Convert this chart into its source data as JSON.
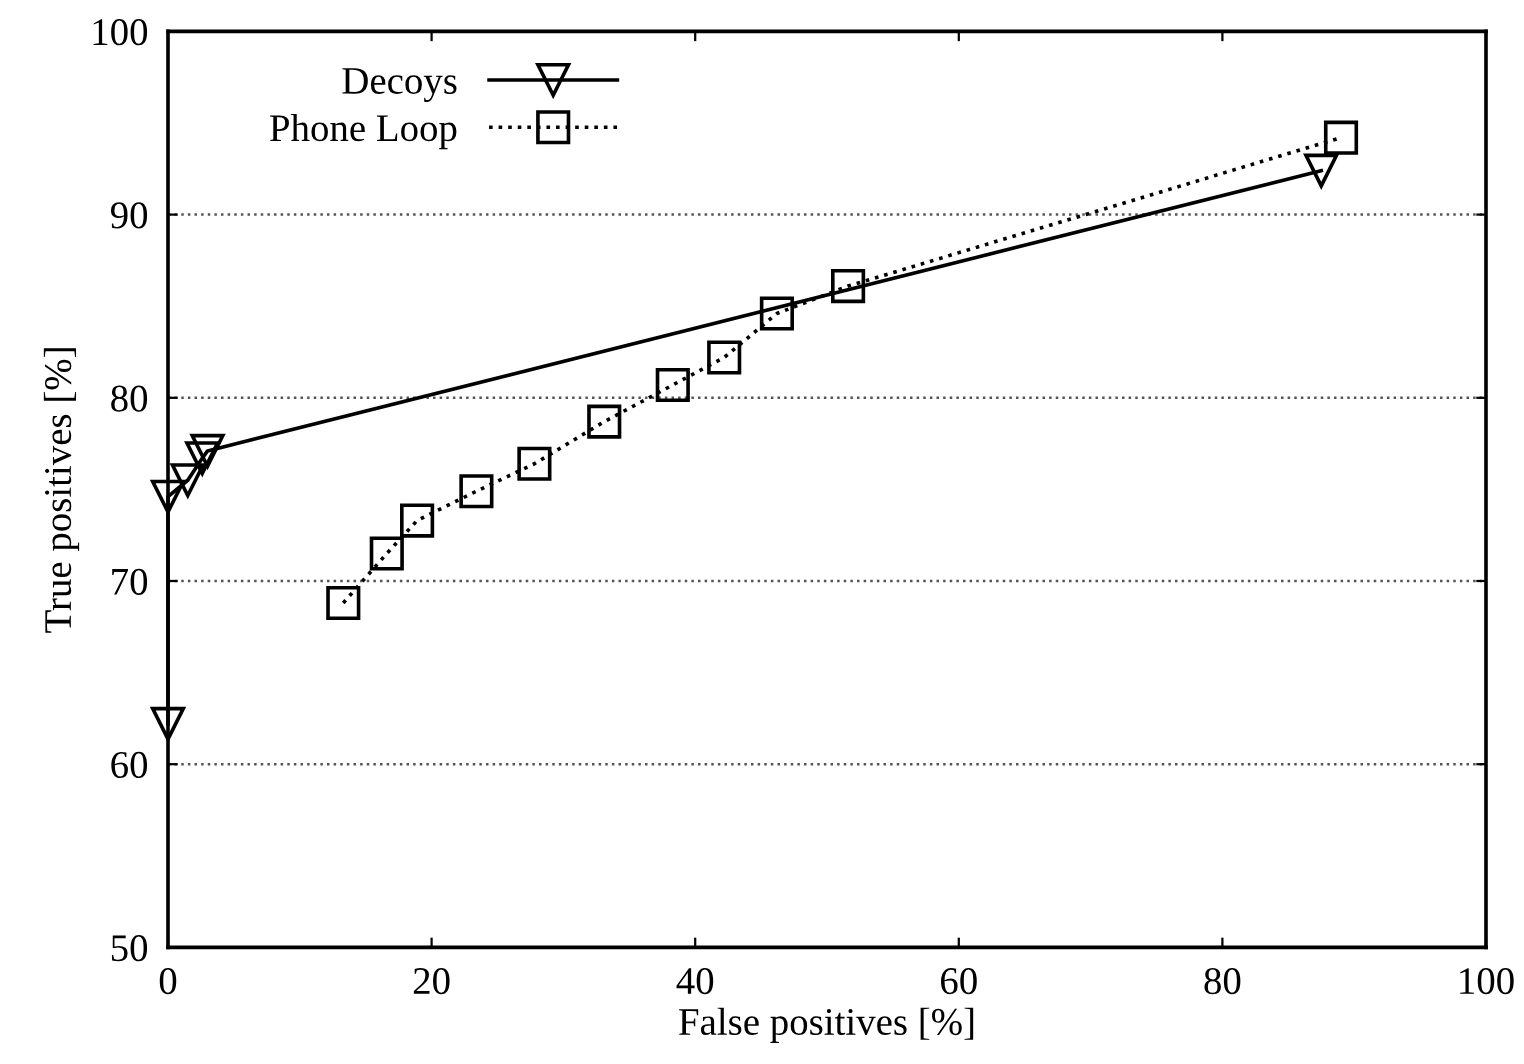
{
  "chart_data": {
    "type": "line",
    "xlabel": "False positives [%]",
    "ylabel": "True positives [%]",
    "xlim": [
      0,
      100
    ],
    "ylim": [
      50,
      100
    ],
    "xticks": [
      0,
      20,
      40,
      60,
      80,
      100
    ],
    "yticks": [
      50,
      60,
      70,
      80,
      90,
      100
    ],
    "grid": "y",
    "legend": "top left",
    "series": [
      {
        "name": "Decoys",
        "color": "#000000",
        "marker": "triangle",
        "line_style": "solid",
        "x": [
          0,
          0,
          1.5,
          2.6,
          3,
          87.5
        ],
        "values": [
          62.2,
          74.6,
          75.5,
          76.7,
          77.1,
          92.4
        ]
      },
      {
        "name": "Phone Loop",
        "color": "#000000",
        "marker": "square",
        "line_style": "dotted",
        "x": [
          13.3,
          16.6,
          18.9,
          23.4,
          27.8,
          33.1,
          38.3,
          42.2,
          46.2,
          51.6,
          89.0
        ],
        "values": [
          68.8,
          71.5,
          73.3,
          74.9,
          76.4,
          78.7,
          80.7,
          82.2,
          84.6,
          86.1,
          94.2
        ]
      }
    ]
  }
}
